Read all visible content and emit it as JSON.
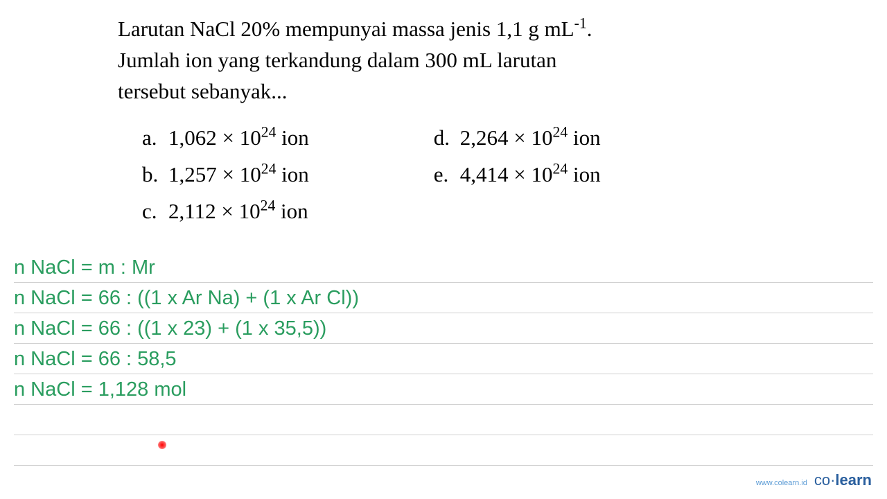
{
  "question": {
    "line1_part1": "Larutan NaCl 20% mempunyai massa jenis 1,1 g mL",
    "line1_sup": "-1",
    "line1_part2": ".",
    "line2": "Jumlah ion yang terkandung dalam 300 mL larutan",
    "line3": "tersebut sebanyak..."
  },
  "options": {
    "col1": [
      {
        "letter": "a.",
        "value": "1,062 × 10",
        "sup": "24",
        "suffix": " ion"
      },
      {
        "letter": "b.",
        "value": "1,257 × 10",
        "sup": "24",
        "suffix": " ion"
      },
      {
        "letter": "c.",
        "value": "2,112 × 10",
        "sup": "24",
        "suffix": " ion"
      }
    ],
    "col2": [
      {
        "letter": "d.",
        "value": "2,264 × 10",
        "sup": "24",
        "suffix": " ion"
      },
      {
        "letter": "e.",
        "value": "4,414 × 10",
        "sup": "24",
        "suffix": " ion"
      }
    ]
  },
  "work": {
    "lines": [
      "n NaCl = m : Mr",
      "n NaCl = 66 : ((1 x Ar Na) + (1 x Ar Cl))",
      "n NaCl = 66 : ((1 x 23) + (1 x 35,5))",
      "n NaCl = 66 : 58,5",
      "n NaCl = 1,128 mol",
      "",
      ""
    ],
    "text_color": "#2a9d5f",
    "line_color": "#d0d0d0",
    "font_size": 29
  },
  "footer": {
    "url": "www.colearn.id",
    "logo_co": "co",
    "logo_dot": "·",
    "logo_learn": "learn"
  },
  "colors": {
    "question_text": "#000000",
    "work_text": "#2a9d5f",
    "footer_url": "#5b9bd5",
    "footer_logo": "#2a5f9e",
    "background": "#ffffff"
  }
}
